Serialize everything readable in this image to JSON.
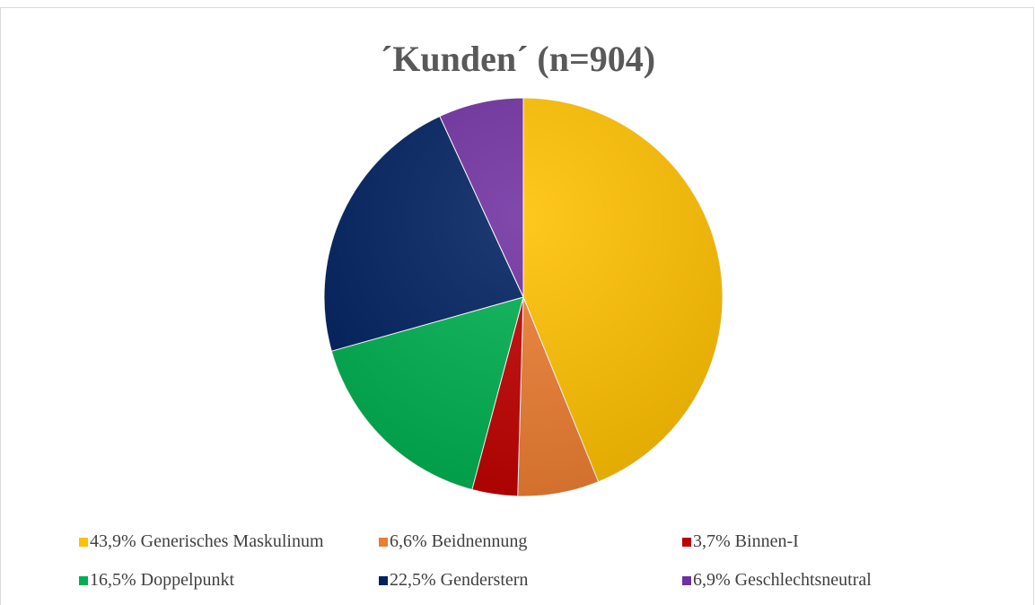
{
  "chart_data": {
    "type": "pie",
    "title": "´Kunden´ (n=904)",
    "categories": [
      "Generisches Maskulinum",
      "Beidnennung",
      "Binnen-I",
      "Doppelpunkt",
      "Genderstern",
      "Geschlechtsneutral"
    ],
    "values": [
      43.9,
      6.6,
      3.7,
      16.5,
      22.5,
      6.9
    ],
    "value_labels": [
      "43,9%",
      "6,6%",
      "3,7%",
      "16,5%",
      "22,5%",
      "6,9%"
    ],
    "colors": [
      "#FFC000",
      "#ED7D31",
      "#C00000",
      "#00B050",
      "#002060",
      "#7030A0"
    ],
    "legend": "bottom"
  }
}
